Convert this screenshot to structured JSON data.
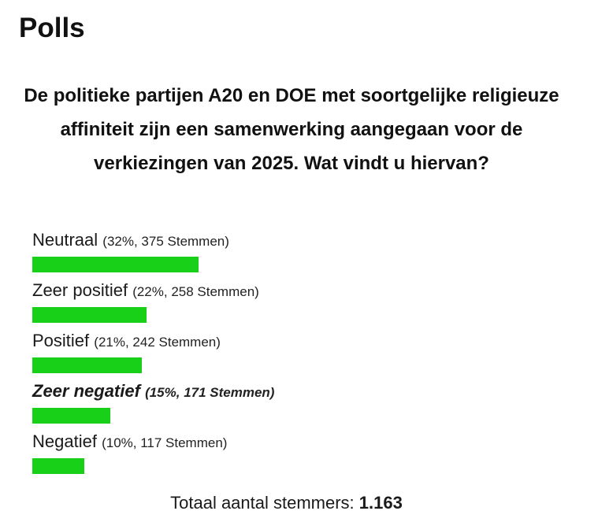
{
  "heading": "Polls",
  "question": "De politieke partijen A20 en DOE met soortgelijke religieuze affiniteit zijn een samenwerking aangegaan voor de verkiezingen van 2025. Wat vindt u hiervan?",
  "bar_color": "#19d019",
  "options": [
    {
      "label": "Neutraal",
      "detail": "(32%, 375 Stemmen)",
      "percent": 32
    },
    {
      "label": "Zeer positief",
      "detail": "(22%, 258 Stemmen)",
      "percent": 22
    },
    {
      "label": "Positief",
      "detail": "(21%, 242 Stemmen)",
      "percent": 21
    },
    {
      "label": "Zeer negatief",
      "detail": "(15%, 171 Stemmen)",
      "percent": 15,
      "emphasized": true
    },
    {
      "label": "Negatief",
      "detail": "(10%, 117 Stemmen)",
      "percent": 10
    }
  ],
  "total": {
    "label": "Totaal aantal stemmers:",
    "value": "1.163"
  }
}
